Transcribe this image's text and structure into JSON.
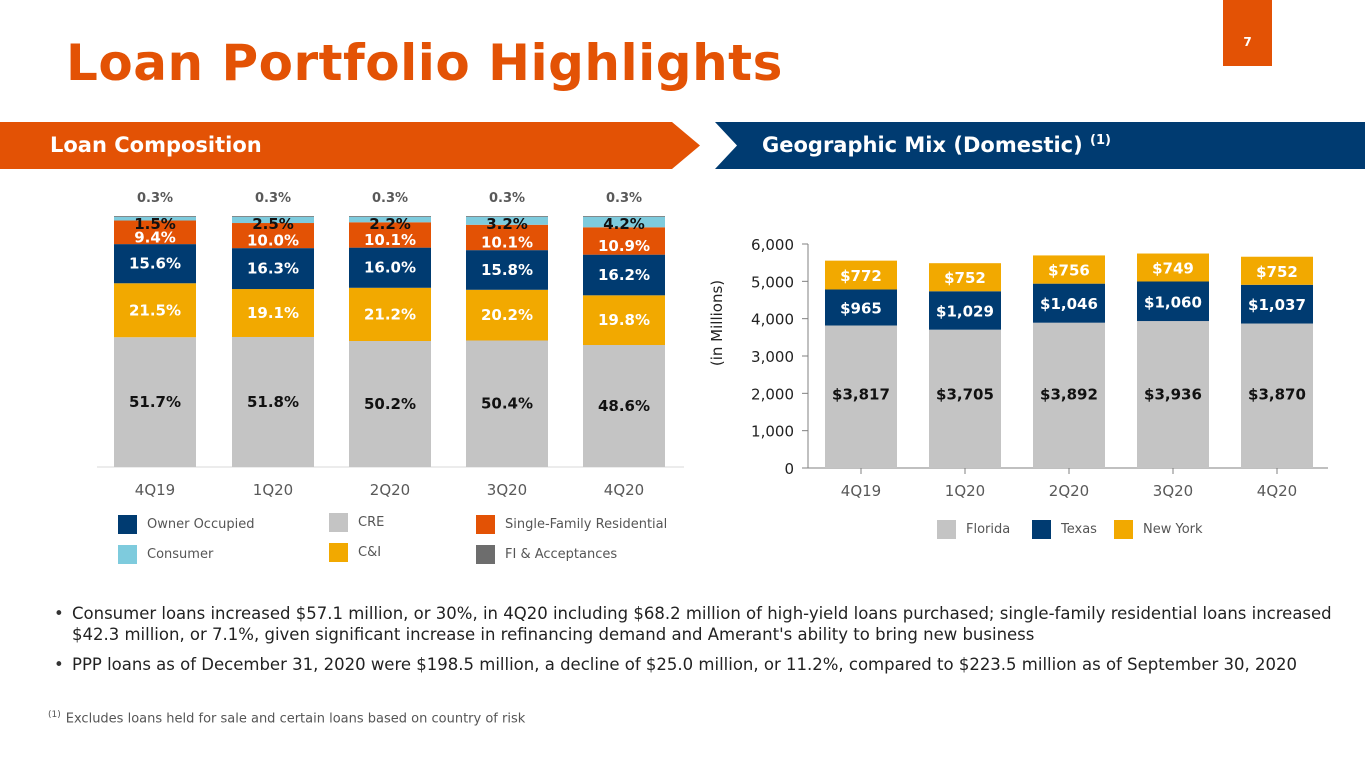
{
  "slide": {
    "title": "Loan Portfolio Highlights",
    "page_number": "7",
    "left_banner": "Loan Composition",
    "right_banner": "Geographic Mix (Domestic)",
    "right_banner_sup": "(1)"
  },
  "colors": {
    "orange": "#e35205",
    "navy": "#003b71",
    "gold": "#f2a900",
    "gray": "#c4c4c4",
    "light_blue": "#7ecbdd",
    "dark_gray": "#6d6d6d"
  },
  "chart_data": [
    {
      "type": "bar",
      "stacked": true,
      "title": "Loan Composition",
      "categories": [
        "4Q19",
        "1Q20",
        "2Q20",
        "3Q20",
        "4Q20"
      ],
      "unit": "%",
      "series": [
        {
          "name": "CRE",
          "color": "#c4c4c4",
          "values": [
            51.7,
            51.8,
            50.2,
            50.4,
            48.6
          ],
          "labels": [
            "51.7%",
            "51.8%",
            "50.2%",
            "50.4%",
            "48.6%"
          ]
        },
        {
          "name": "C&I",
          "color": "#f2a900",
          "values": [
            21.5,
            19.1,
            21.2,
            20.2,
            19.8
          ],
          "labels": [
            "21.5%",
            "19.1%",
            "21.2%",
            "20.2%",
            "19.8%"
          ]
        },
        {
          "name": "Owner Occupied",
          "color": "#003b71",
          "values": [
            15.6,
            16.3,
            16.0,
            15.8,
            16.2
          ],
          "labels": [
            "15.6%",
            "16.3%",
            "16.0%",
            "15.8%",
            "16.2%"
          ]
        },
        {
          "name": "Single-Family Residential",
          "color": "#e35205",
          "values": [
            9.4,
            10.0,
            10.1,
            10.1,
            10.9
          ],
          "labels": [
            "9.4%",
            "10.0%",
            "10.1%",
            "10.1%",
            "10.9%"
          ]
        },
        {
          "name": "Consumer",
          "color": "#7ecbdd",
          "values": [
            1.5,
            2.5,
            2.2,
            3.2,
            4.2
          ],
          "labels": [
            "1.5%",
            "2.5%",
            "2.2%",
            "3.2%",
            "4.2%"
          ]
        },
        {
          "name": "FI & Acceptances",
          "color": "#6d6d6d",
          "values": [
            0.3,
            0.3,
            0.3,
            0.3,
            0.3
          ],
          "labels": [
            "0.3%",
            "0.3%",
            "0.3%",
            "0.3%",
            "0.3%"
          ]
        }
      ],
      "legend": {
        "placement": "bottom",
        "items": [
          "Owner Occupied",
          "CRE",
          "Single-Family Residential",
          "Consumer",
          "C&I",
          "FI & Acceptances"
        ]
      },
      "grid": false,
      "ylim": [
        0,
        100
      ]
    },
    {
      "type": "bar",
      "stacked": true,
      "title": "Geographic Mix (Domestic)",
      "ylabel": "(in Millions)",
      "categories": [
        "4Q19",
        "1Q20",
        "2Q20",
        "3Q20",
        "4Q20"
      ],
      "ylim": [
        0,
        6000
      ],
      "yticks": [
        "0",
        "1,000",
        "2,000",
        "3,000",
        "4,000",
        "5,000",
        "6,000"
      ],
      "series": [
        {
          "name": "Florida",
          "color": "#c4c4c4",
          "values": [
            3817,
            3705,
            3892,
            3936,
            3870
          ],
          "labels": [
            "$3,817",
            "$3,705",
            "$3,892",
            "$3,936",
            "$3,870"
          ]
        },
        {
          "name": "Texas",
          "color": "#003b71",
          "values": [
            965,
            1029,
            1046,
            1060,
            1037
          ],
          "labels": [
            "$965",
            "$1,029",
            "$1,046",
            "$1,060",
            "$1,037"
          ]
        },
        {
          "name": "New York",
          "color": "#f2a900",
          "values": [
            772,
            752,
            756,
            749,
            752
          ],
          "labels": [
            "$772",
            "$752",
            "$756",
            "$749",
            "$752"
          ]
        }
      ],
      "legend": {
        "placement": "bottom",
        "items": [
          "Florida",
          "Texas",
          "New York"
        ]
      },
      "grid": false
    }
  ],
  "bullets": [
    "Consumer loans increased $57.1 million, or 30%, in 4Q20 including $68.2 million of high-yield loans purchased; single-family residential loans increased $42.3 million, or 7.1%, given significant increase in refinancing demand and Amerant's ability to bring new business",
    "PPP loans as of December 31, 2020 were $198.5 million, a decline of $25.0 million, or 11.2%, compared to $223.5 million as of September 30, 2020"
  ],
  "footnote": {
    "marker": "(1)",
    "text": "Excludes loans held for sale and certain loans based on country of risk"
  }
}
